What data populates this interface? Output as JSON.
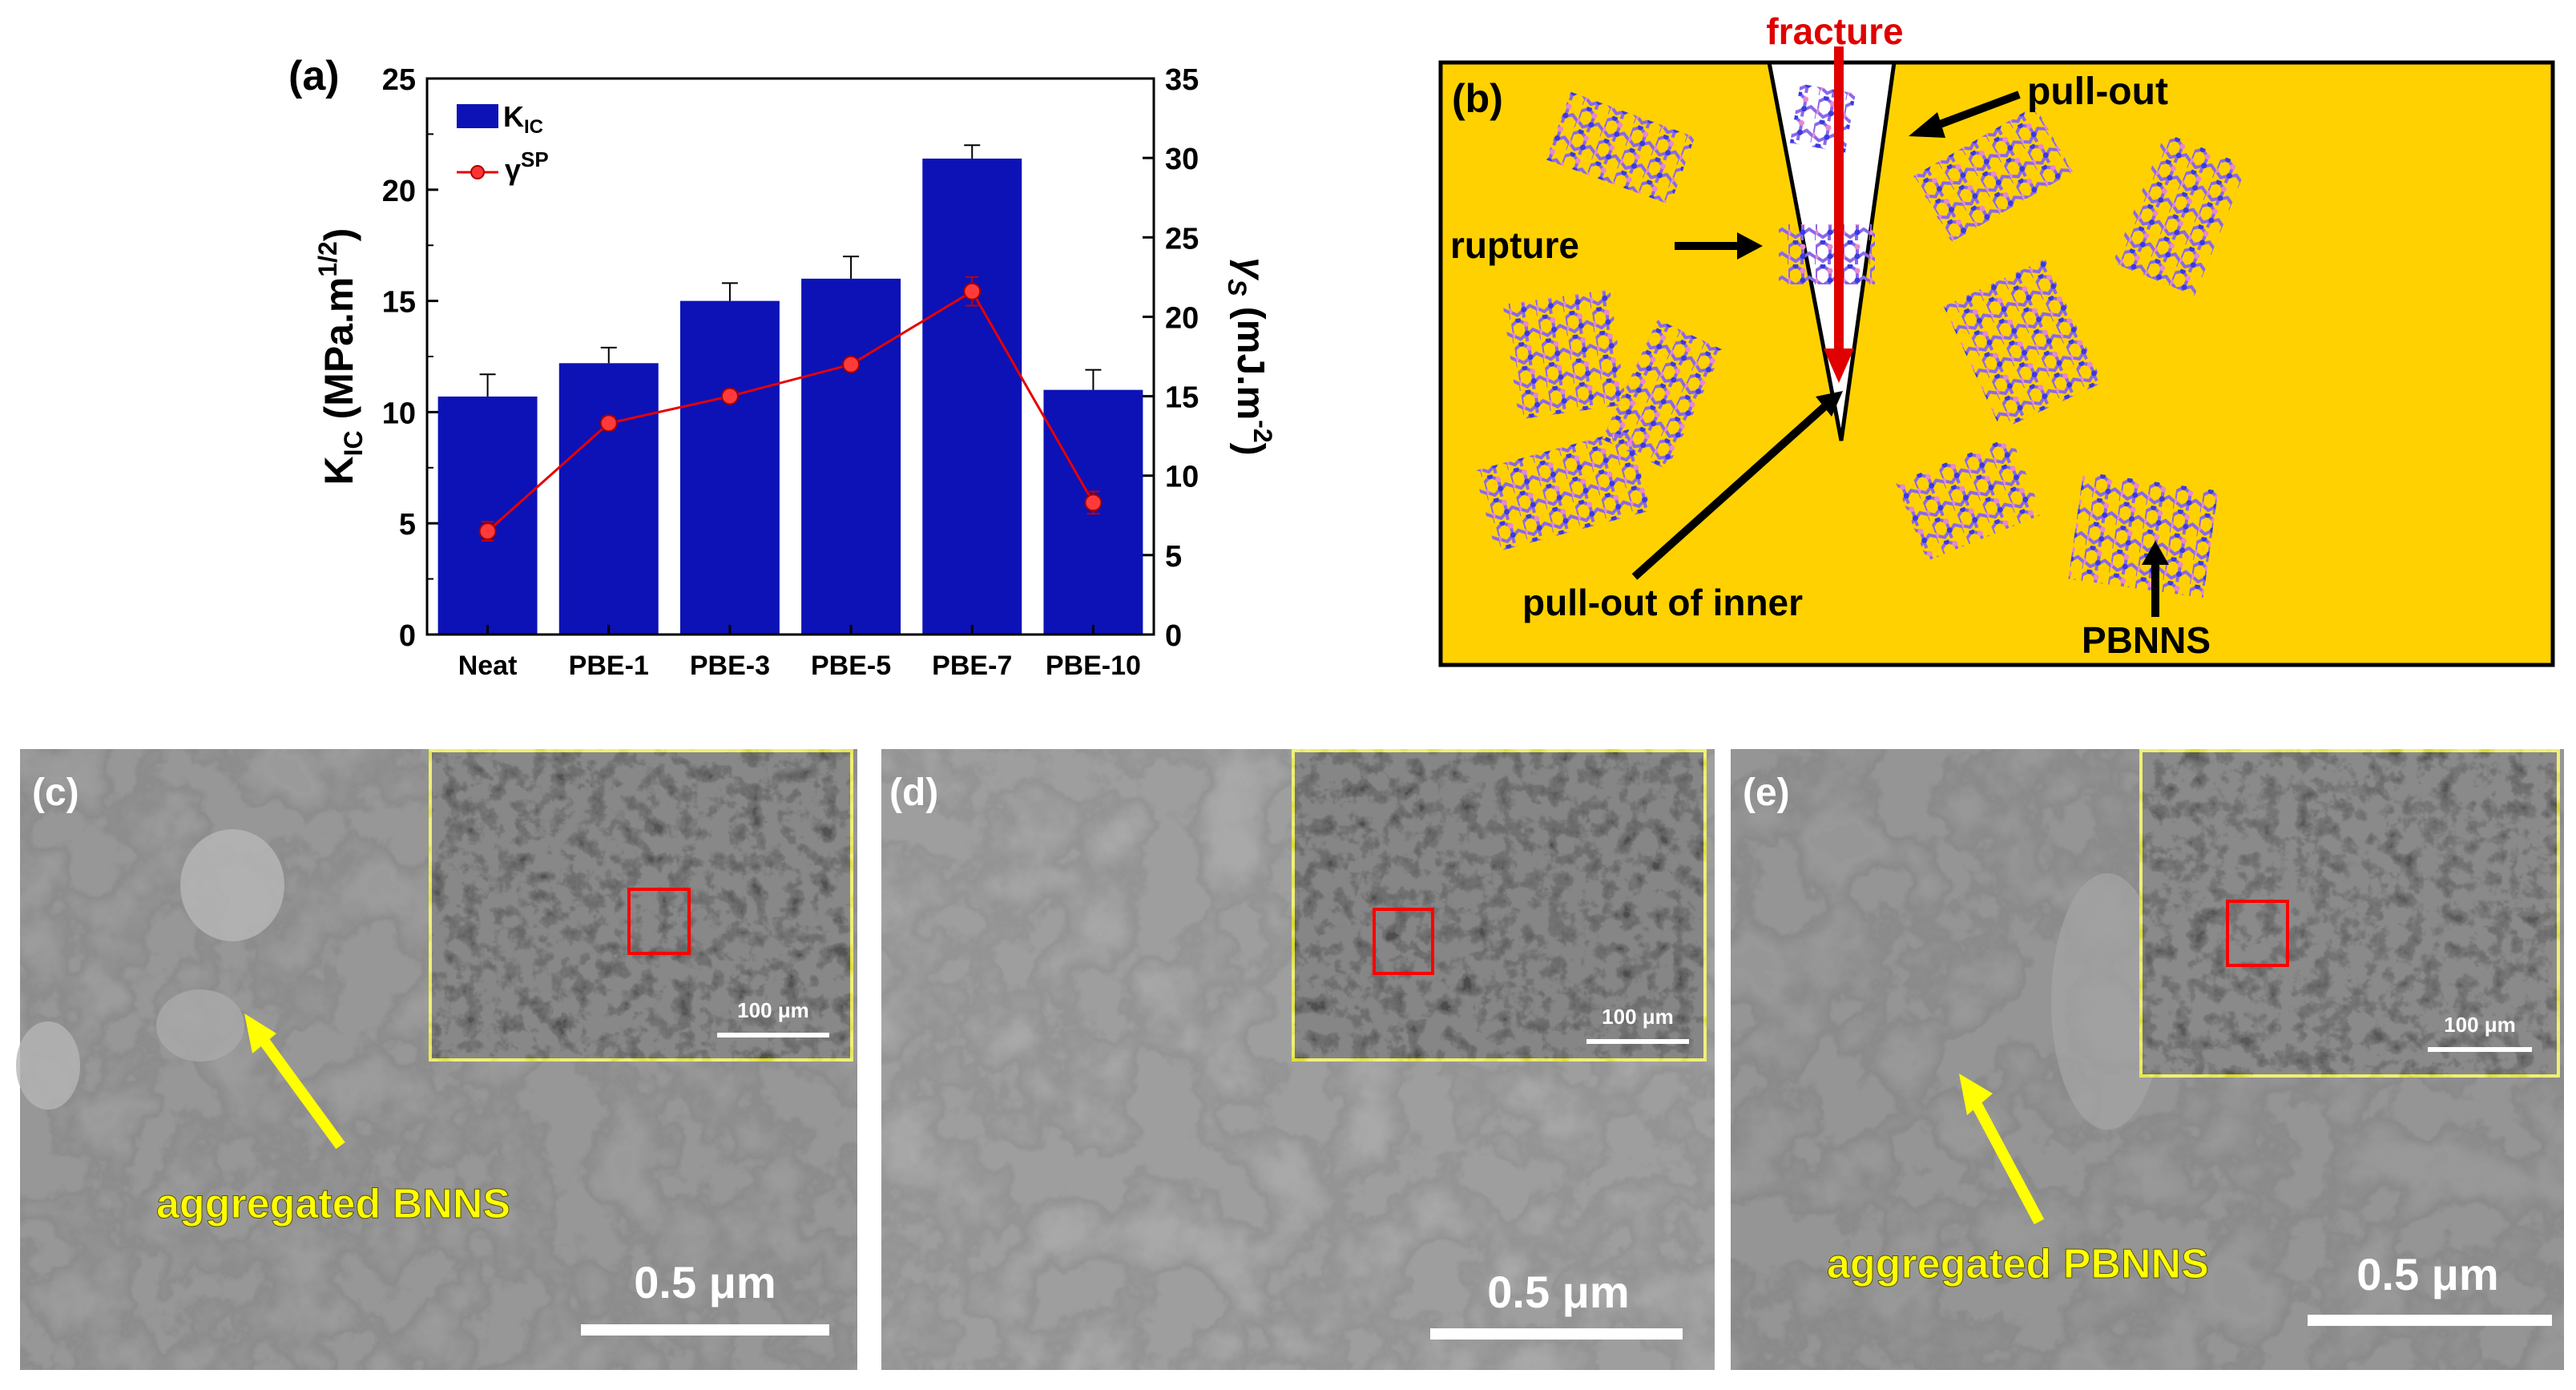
{
  "chart_data": {
    "type": "bar",
    "panel_label": "(a)",
    "categories": [
      "Neat",
      "PBE-1",
      "PBE-3",
      "PBE-5",
      "PBE-7",
      "PBE-10"
    ],
    "series": [
      {
        "name": "K_IC",
        "kind": "bar",
        "axis": "left",
        "color": "#0d12b6",
        "values": [
          10.7,
          12.2,
          15.0,
          16.0,
          21.4,
          11.0
        ],
        "errors": [
          1.0,
          0.7,
          0.8,
          1.0,
          0.6,
          0.9
        ]
      },
      {
        "name": "γSP",
        "kind": "line",
        "axis": "right",
        "color": "#e60000",
        "values": [
          6.5,
          13.3,
          15.0,
          17.0,
          21.6,
          8.3
        ],
        "errors": [
          0.6,
          0.4,
          0.3,
          0.3,
          0.9,
          0.7
        ]
      }
    ],
    "ylim": [
      0,
      25
    ],
    "yticks": [
      "0",
      "5",
      "10",
      "15",
      "20",
      "25"
    ],
    "y2lim": [
      0,
      35
    ],
    "y2ticks": [
      "0",
      "5",
      "10",
      "15",
      "20",
      "25",
      "30",
      "35"
    ],
    "ylabel": {
      "main": "K",
      "sub": "IC",
      "rest": " (MPa.m",
      "sup": "1/2",
      "close": ")"
    },
    "y2label": {
      "main": "γ",
      "sub": "S",
      "rest": " (mJ.m",
      "sup": "-2",
      "close": ")"
    },
    "legend": {
      "bar_main": "K",
      "bar_sub": "IC",
      "line_main": "γ",
      "line_sup": "SP"
    },
    "xlabel": "",
    "legend_position": "top-left"
  },
  "schematic": {
    "label": "(b)",
    "fracture": "fracture",
    "pull_out": "pull-out",
    "rupture": "rupture",
    "pull_out_inner": "pull-out  of inner",
    "pbnns": "PBNNS",
    "bg_color": "#ffd100"
  },
  "sem": [
    {
      "label": "(c)",
      "annotation": "aggregated BNNS",
      "scale": "0.5 μm",
      "inset_scale": "100 μm"
    },
    {
      "label": "(d)",
      "annotation": "",
      "scale": "0.5 μm",
      "inset_scale": "100 μm"
    },
    {
      "label": "(e)",
      "annotation": "aggregated PBNNS",
      "scale": "0.5 μm",
      "inset_scale": "100 μm"
    }
  ],
  "colors": {
    "accent_yellow": "#ffff00",
    "marker_red": "#e60000",
    "bar_blue": "#0d12b6"
  }
}
